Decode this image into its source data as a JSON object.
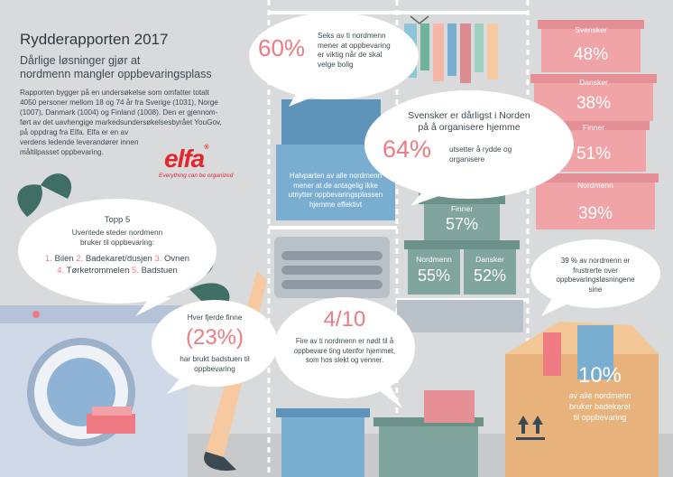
{
  "header": {
    "title": "Rydderapporten 2017",
    "subtitle_line1": "Dårlige løsninger gjør at",
    "subtitle_line2": "nordmenn mangler oppbevaringsplass",
    "intro_lines": [
      "Rapporten bygger på en undersøkelse som omfatter totalt",
      "4050 personer mellom 18 og 74 år fra Sverige (1031), Norge",
      "(1007), Danmark (1004) og Finland (1008). Den er gjennom-",
      "ført av det uavhengige markedsundersøkelsesbyrået YouGov,",
      "på oppdrag fra Elfa. Elfa er en av",
      "verdens ledende leverandører innen",
      "måltilpasset oppbevaring."
    ]
  },
  "brand": {
    "logo_text": "elfa",
    "registered_mark": "®",
    "tagline": "Everything can be organized",
    "color": "#e3262b"
  },
  "top5": {
    "title": "Topp 5",
    "intro_line1": "Uventede steder nordmenn",
    "intro_line2": "bruker til oppbevaring:",
    "items": [
      {
        "num": "1.",
        "label": "Bilen"
      },
      {
        "num": "2.",
        "label": "Badekaret/dusjen"
      },
      {
        "num": "3.",
        "label": "Ovnen"
      },
      {
        "num": "4.",
        "label": "Tørketrommelen"
      },
      {
        "num": "5.",
        "label": "Badstuen"
      }
    ]
  },
  "stats": {
    "sixty": {
      "value": "60%",
      "lines": [
        "Seks av ti nordmenn",
        "mener at oppbevaring",
        "er viktig når de skal",
        "velge bolig"
      ]
    },
    "halvparten": {
      "lines": [
        "Halvparten av alle nordmenn",
        "mener at de antagelig ikke",
        "utnytter oppbevaringsplassen",
        "hjemme effektivt"
      ]
    },
    "svensker": {
      "title_line1": "Svensker er dårligst i Norden",
      "title_line2": "på å organisere hjemme",
      "value": "64%",
      "lines": [
        "utsetter å rydde og",
        "organisere"
      ]
    },
    "finne": {
      "line1": "Hver fjerde finne",
      "value": "(23%)",
      "lines": [
        "har brukt badstuen til",
        "oppbevaring"
      ]
    },
    "fire_av_ti": {
      "value": "4/10",
      "lines": [
        "Fire av ti nordmenn er nødt til å",
        "oppbevare ting utenfor hjemmet,",
        "som hos slekt og venner."
      ]
    },
    "frustrerte": {
      "lines": [
        "39 % av nordmenn er",
        "frustrerte over",
        "oppbevaringsløsningene",
        "sine"
      ]
    },
    "ti_prosent": {
      "value": "10%",
      "lines": [
        "av alle nordmenn",
        "bruker badekaret",
        "til oppbevaring"
      ]
    }
  },
  "crate_stack": [
    {
      "country": "Finner",
      "value": "57%"
    },
    {
      "country": "Nordmenn",
      "value": "55%"
    },
    {
      "country": "Dansker",
      "value": "52%"
    }
  ],
  "pink_stack": [
    {
      "country": "Svensker",
      "value": "48%"
    },
    {
      "country": "Dansker",
      "value": "38%"
    },
    {
      "country": "Finner",
      "value": "51%"
    },
    {
      "country": "Nordmenn",
      "value": "39%"
    }
  ],
  "colors": {
    "background": "#d9dadb",
    "accent_pink": "#ee7a84",
    "text_dark": "#3b4a52",
    "teal_crate": "#7fa59c",
    "blue_box": "#7aaed1",
    "pink_box": "#f1a4a8",
    "washer": "#cfd9e8"
  },
  "icons": [
    "leaf-icon",
    "hanger-icon",
    "washing-machine-icon",
    "hockey-stick-icon",
    "this-side-up-icon"
  ]
}
